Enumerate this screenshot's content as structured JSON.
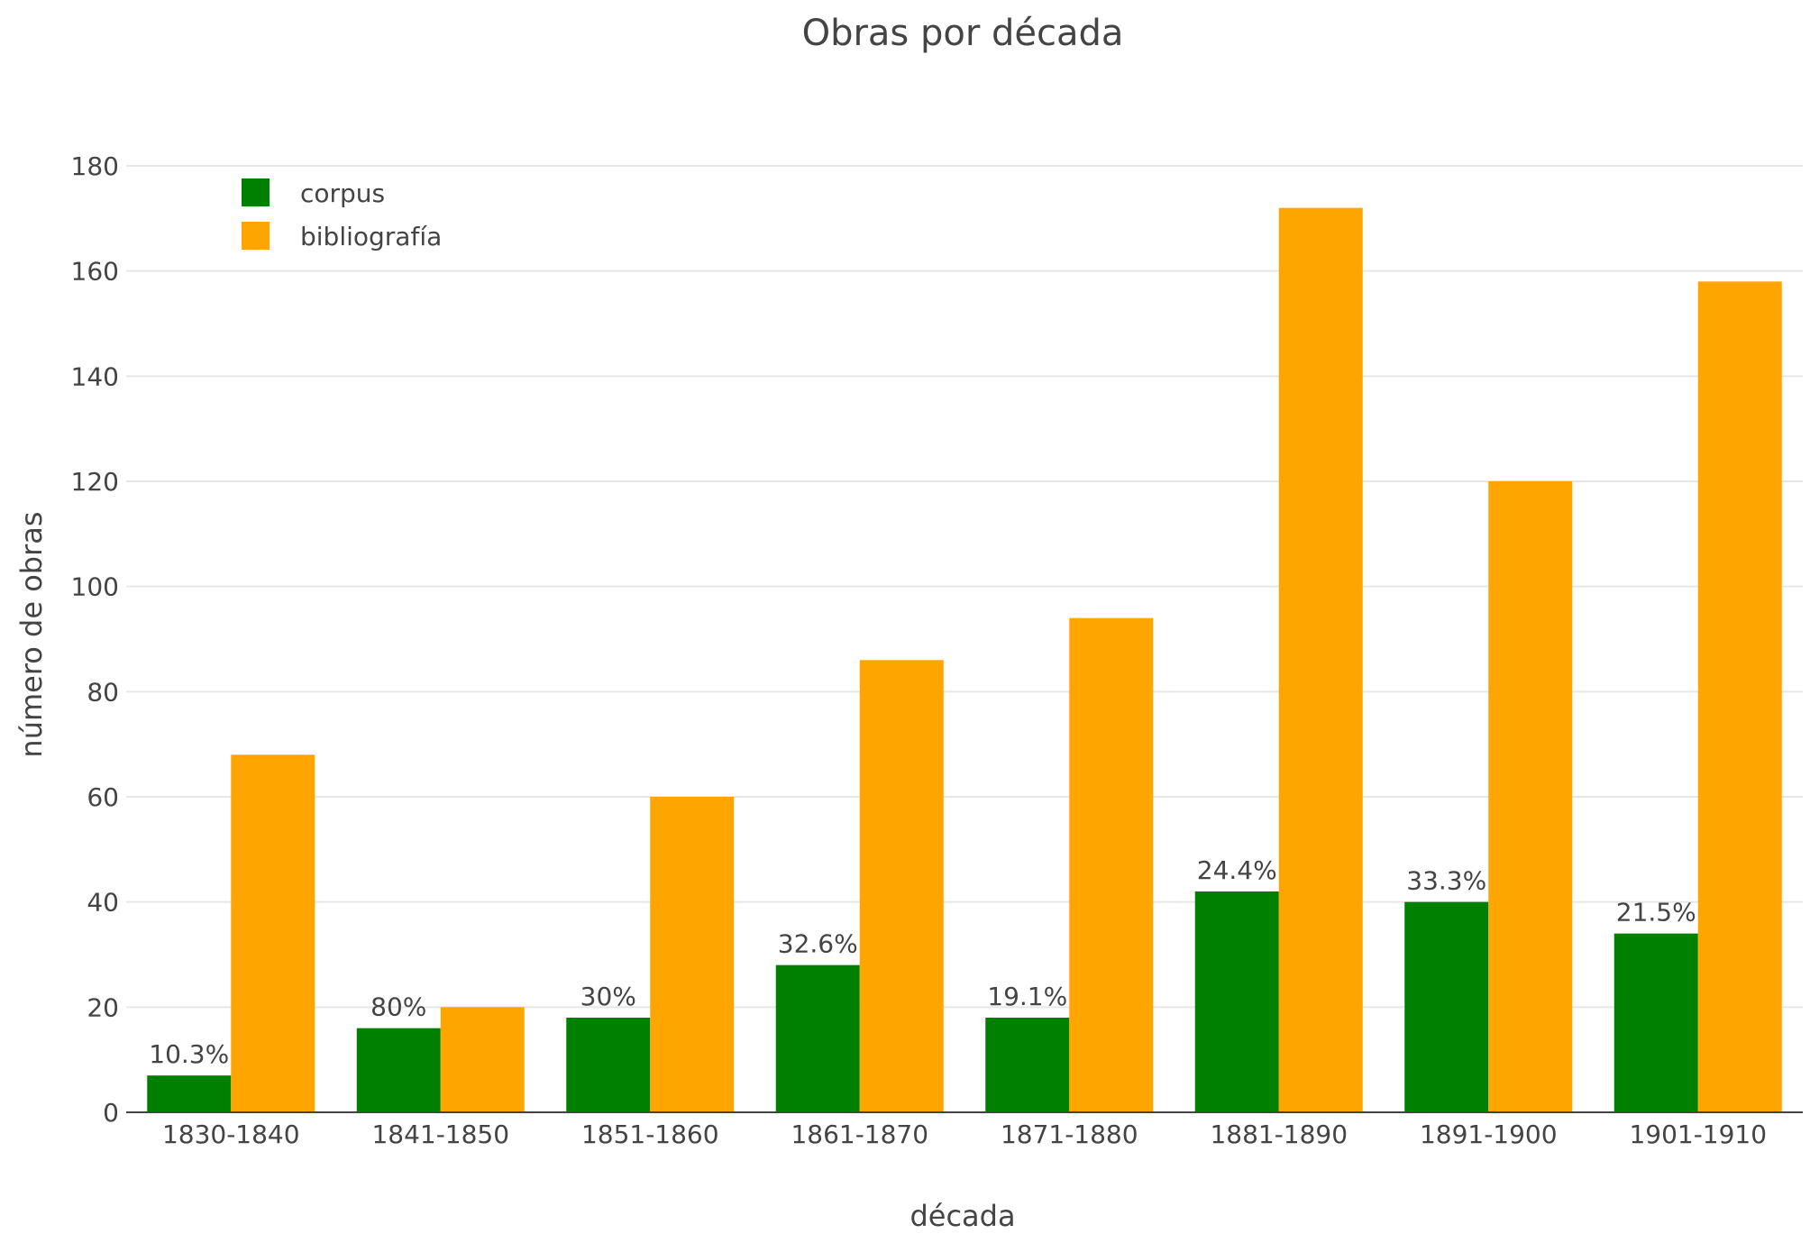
{
  "chart_data": {
    "type": "bar",
    "title": "Obras por década",
    "xlabel": "década",
    "ylabel": "número de obras",
    "categories": [
      "1830-1840",
      "1841-1850",
      "1851-1860",
      "1861-1870",
      "1871-1880",
      "1881-1890",
      "1891-1900",
      "1901-1910"
    ],
    "series": [
      {
        "name": "corpus",
        "color": "#008000",
        "values": [
          7,
          16,
          18,
          28,
          18,
          42,
          40,
          34
        ],
        "labels": [
          "10.3%",
          "80%",
          "30%",
          "32.6%",
          "19.1%",
          "24.4%",
          "33.3%",
          "21.5%"
        ]
      },
      {
        "name": "bibliografía",
        "color": "#FFA500",
        "values": [
          68,
          20,
          60,
          86,
          94,
          172,
          120,
          158
        ]
      }
    ],
    "ylim": [
      0,
      180
    ],
    "yticks": [
      0,
      20,
      40,
      60,
      80,
      100,
      120,
      140,
      160,
      180
    ],
    "grid": true,
    "legend": "top-left"
  }
}
